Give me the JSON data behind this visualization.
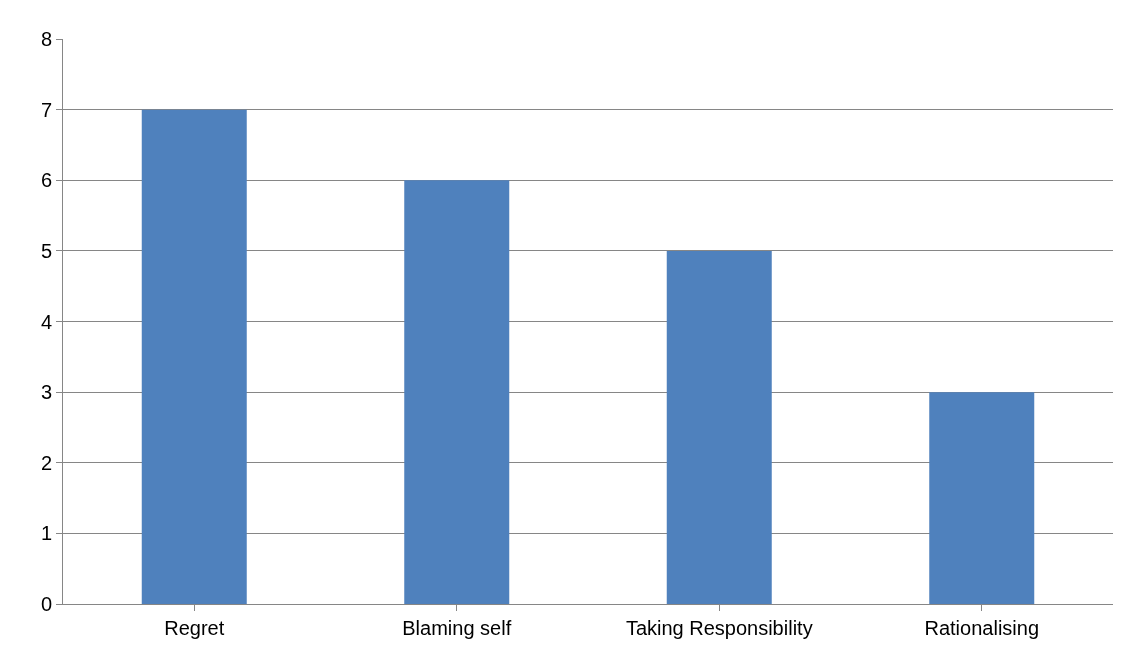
{
  "chart_data": {
    "type": "bar",
    "categories": [
      "Regret",
      "Blaming self",
      "Taking Responsibility",
      "Rationalising"
    ],
    "values": [
      7,
      6,
      5,
      3
    ],
    "color": "#4f81bd",
    "ylim": [
      0,
      8
    ],
    "yticks": [
      0,
      1,
      2,
      3,
      4,
      5,
      6,
      7,
      8
    ],
    "grid": "y",
    "legend": false
  }
}
